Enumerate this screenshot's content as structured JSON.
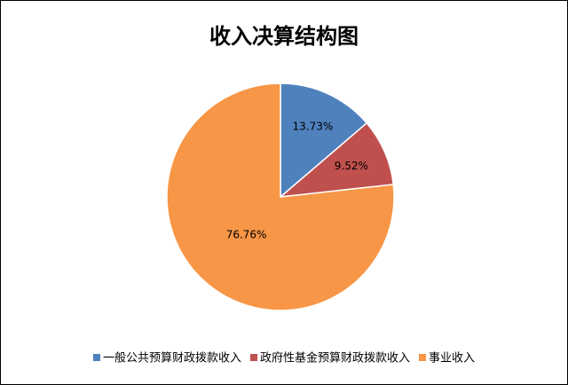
{
  "chart_data": {
    "type": "pie",
    "title": "收入决算结构图",
    "categories": [
      "一般公共预算财政拨款收入",
      "政府性基金预算财政拨款收入",
      "事业收入"
    ],
    "values": [
      13.73,
      9.52,
      76.76
    ],
    "value_labels": [
      "13.73%",
      "9.52%",
      "76.76%"
    ],
    "colors": [
      "#4f81bd",
      "#c0504d",
      "#f79646"
    ],
    "legend": "bottom"
  }
}
